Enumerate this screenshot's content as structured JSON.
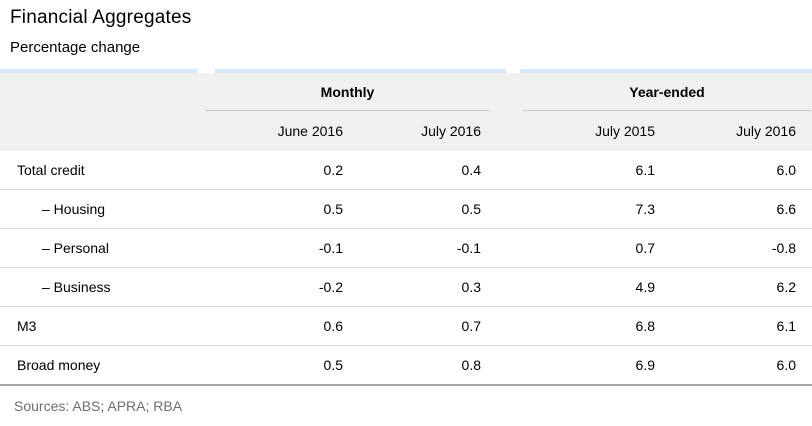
{
  "header": {
    "title": "Financial Aggregates",
    "subtitle": "Percentage change"
  },
  "table": {
    "column_groups": [
      "Monthly",
      "Year-ended"
    ],
    "columns": [
      "June 2016",
      "July 2016",
      "July 2015",
      "July 2016"
    ],
    "rows": [
      {
        "label": "Total credit",
        "cells": [
          "0.2",
          "0.4",
          "6.1",
          "6.0"
        ]
      },
      {
        "label": "– Housing",
        "cells": [
          "0.5",
          "0.5",
          "7.3",
          "6.6"
        ]
      },
      {
        "label": "– Personal",
        "cells": [
          "-0.1",
          "-0.1",
          "0.7",
          "-0.8"
        ]
      },
      {
        "label": "– Business",
        "cells": [
          "-0.2",
          "0.3",
          "4.9",
          "6.2"
        ]
      },
      {
        "label": "M3",
        "cells": [
          "0.6",
          "0.7",
          "6.8",
          "6.1"
        ]
      },
      {
        "label": "Broad money",
        "cells": [
          "0.5",
          "0.8",
          "6.9",
          "6.0"
        ]
      }
    ]
  },
  "footer": {
    "sources": "Sources: ABS; APRA; RBA"
  },
  "colors": {
    "top_border": "#d9e8f6",
    "header_bg": "#f0f0ef",
    "row_divider": "#dcdcdc",
    "group_underline": "#c8c8c8",
    "bottom_border": "#a6a6a6",
    "sources_text": "#6e6e6e",
    "text": "#000000"
  },
  "chart_data": {
    "type": "table",
    "title": "Financial Aggregates",
    "subtitle": "Percentage change",
    "unit": "percent",
    "column_groups": [
      {
        "label": "Monthly",
        "columns": [
          "June 2016",
          "July 2016"
        ]
      },
      {
        "label": "Year-ended",
        "columns": [
          "July 2015",
          "July 2016"
        ]
      }
    ],
    "rows": [
      {
        "label": "Total credit",
        "indent": false,
        "values": [
          0.2,
          0.4,
          6.1,
          6.0
        ]
      },
      {
        "label": "Housing",
        "indent": true,
        "values": [
          0.5,
          0.5,
          7.3,
          6.6
        ]
      },
      {
        "label": "Personal",
        "indent": true,
        "values": [
          -0.1,
          -0.1,
          0.7,
          -0.8
        ]
      },
      {
        "label": "Business",
        "indent": true,
        "values": [
          -0.2,
          0.3,
          4.9,
          6.2
        ]
      },
      {
        "label": "M3",
        "indent": false,
        "values": [
          0.6,
          0.7,
          6.8,
          6.1
        ]
      },
      {
        "label": "Broad money",
        "indent": false,
        "values": [
          0.5,
          0.8,
          6.9,
          6.0
        ]
      }
    ],
    "sources": [
      "ABS",
      "APRA",
      "RBA"
    ]
  }
}
